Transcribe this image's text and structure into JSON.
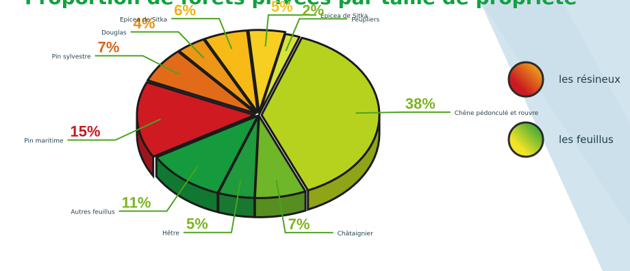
{
  "chart_data": {
    "type": "pie",
    "title": "Proportion de forêts privées par taille de propriété",
    "slices": [
      {
        "label": "Chêne pédonculé et rouvre",
        "value": 38,
        "pct_text": "38%",
        "group": "feuillus",
        "color": "#b7d21e"
      },
      {
        "label": "Châtaignier",
        "value": 7,
        "pct_text": "7%",
        "group": "feuillus",
        "color": "#6fb629"
      },
      {
        "label": "Hêtre",
        "value": 5,
        "pct_text": "5%",
        "group": "feuillus",
        "color": "#1f9a3c"
      },
      {
        "label": "Autres feuillus",
        "value": 11,
        "pct_text": "11%",
        "group": "feuillus",
        "color": "#159a3e"
      },
      {
        "label": "Pin maritime",
        "value": 15,
        "pct_text": "15%",
        "group": "resineux",
        "color": "#cf1a22"
      },
      {
        "label": "Pin sylvestre",
        "value": 7,
        "pct_text": "7%",
        "group": "resineux",
        "color": "#e26b1a"
      },
      {
        "label": "Douglas",
        "value": 4,
        "pct_text": "4%",
        "group": "resineux",
        "color": "#ee9617"
      },
      {
        "label": "Epicea de Sitka",
        "value": 6,
        "pct_text": "6%",
        "group": "resineux",
        "color": "#f7ba16"
      },
      {
        "label": "Epicea de Sitka",
        "value": 5,
        "pct_text": "5%",
        "group": "resineux",
        "color": "#f7cf22"
      },
      {
        "label": "Peupliers",
        "value": 2,
        "pct_text": "2%",
        "group": "feuillus",
        "color": "#d9e23a"
      }
    ]
  },
  "legend": [
    {
      "label": "les résineux",
      "colors": [
        "#cc1a22",
        "#f4c316"
      ]
    },
    {
      "label": "les feuillus",
      "colors": [
        "#129a3d",
        "#f2e326"
      ]
    }
  ],
  "colors": {
    "pct_text": "#7ab51f",
    "title": "#14a043",
    "lines": "#4aa31f",
    "background_shape": "#cfe3ec"
  }
}
